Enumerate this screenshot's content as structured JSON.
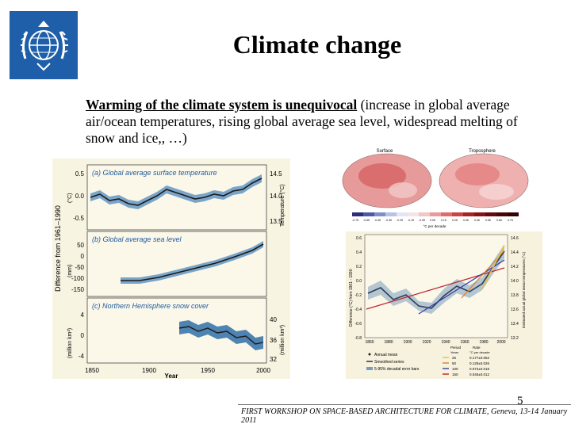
{
  "slide": {
    "title": "Climate change",
    "body_emphasis": "Warming of the climate system is unequivocal",
    "body_rest": " (increase in global  average air/ocean temperatures, rising global average sea level, widespread melting of snow and ice,, …)",
    "slide_number": "5",
    "footer": "FIRST WORKSHOP ON SPACE-BASED ARCHITECTURE FOR CLIMATE, Geneva, 13-14 January 2011"
  },
  "logo": {
    "icon": "wmo-emblem-icon",
    "color": "#1f5fa9"
  },
  "figure_left": {
    "panels": [
      {
        "label": "(a) Global average surface temperature"
      },
      {
        "label": "(b) Global average sea level"
      },
      {
        "label": "(c) Northern Hemisphere snow cover"
      }
    ],
    "ylabel_shared": "Difference from 1961–1990",
    "units_left": [
      "(°C)",
      "(mm)",
      "(million km²)"
    ],
    "units_right": [
      "Temperature (°C)",
      "(million km²)"
    ],
    "yticks_left_a": [
      "0.5",
      "0.0",
      "-0.5"
    ],
    "yticks_right_a": [
      "14.5",
      "14.0",
      "13.5"
    ],
    "yticks_left_b": [
      "50",
      "0",
      "-50",
      "-100",
      "-150"
    ],
    "yticks_left_c": [
      "4",
      "0",
      "-4"
    ],
    "yticks_right_c": [
      "40",
      "36",
      "32"
    ],
    "xticks": [
      "1850",
      "1900",
      "1950",
      "2000"
    ],
    "xlabel": "Year",
    "colors": {
      "line": "#1b1b1b",
      "band": "#2f6fa8",
      "panel_label": "#1e5a9e"
    }
  },
  "figure_maps": {
    "titles": [
      "Surface",
      "Troposphere"
    ],
    "colorbar_label": "°C per decade",
    "colorbar_ticks": [
      "-0.75",
      "-0.65",
      "-0.45",
      "-0.35",
      "-0.25",
      "-0.15",
      "-0.05",
      "0.05",
      "0.15",
      "0.25",
      "0.35",
      "0.45",
      "0.55",
      "0.65",
      "0.75"
    ]
  },
  "figure_right": {
    "ylabel_left": "Difference (°C) from 1961 - 1990",
    "ylabel_right": "Estimated actual global mean temperatures (°C)",
    "yticks_left": [
      "0.6",
      "0.4",
      "0.2",
      "0.0",
      "-0.2",
      "-0.4",
      "-0.6",
      "-0.8"
    ],
    "yticks_right": [
      "14.6",
      "14.4",
      "14.2",
      "14.0",
      "13.8",
      "13.6",
      "13.4",
      "13.2"
    ],
    "xticks": [
      "1860",
      "1880",
      "1900",
      "1920",
      "1940",
      "1960",
      "1980",
      "2000"
    ],
    "legend": [
      {
        "label": "Annual mean"
      },
      {
        "label": "Smoothed series"
      },
      {
        "label": "5-95% decadal error bars"
      }
    ],
    "table_header": [
      "Period",
      "Rate"
    ],
    "table_subheader": [
      "Years",
      "°C per decade"
    ],
    "table_rows": [
      {
        "years": "25",
        "rate": "0.177±0.052",
        "color": "#e8c13a"
      },
      {
        "years": "50",
        "rate": "0.128±0.026",
        "color": "#e07b2a"
      },
      {
        "years": "100",
        "rate": "0.074±0.018",
        "color": "#3a3aa8"
      },
      {
        "years": "150",
        "rate": "0.045±0.012",
        "color": "#c0202a"
      }
    ]
  }
}
